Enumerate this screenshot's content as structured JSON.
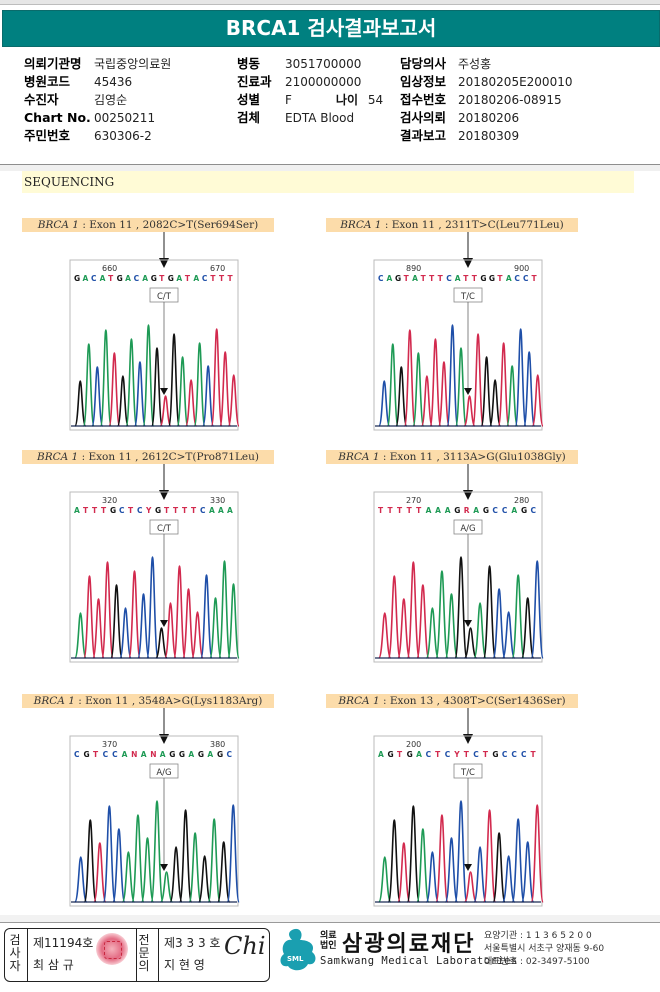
{
  "report": {
    "title": "BRCA1 검사결과보고서"
  },
  "patient_info": {
    "col1": [
      {
        "label": "의뢰기관명",
        "value": "국립중앙의료원"
      },
      {
        "label": "병원코드",
        "value": "45436"
      },
      {
        "label": "수진자",
        "value": "김영순"
      },
      {
        "label": "Chart No.",
        "value": "00250211"
      },
      {
        "label": "주민번호",
        "value": "630306-2"
      }
    ],
    "col2": [
      {
        "label": "병동",
        "value": "3051700000"
      },
      {
        "label": "진료과",
        "value": "2100000000"
      },
      {
        "label": "성별",
        "value": "F"
      },
      {
        "label": "검체",
        "value": "EDTA Blood"
      }
    ],
    "age": {
      "label": "나이",
      "value": "54"
    },
    "col3": [
      {
        "label": "담당의사",
        "value": "주성홍"
      },
      {
        "label": "임상정보",
        "value": "20180205E200010"
      },
      {
        "label": "접수번호",
        "value": "20180206-08915"
      },
      {
        "label": "검사의뢰",
        "value": "20180206"
      },
      {
        "label": "결과보고",
        "value": "20180309"
      }
    ]
  },
  "section": {
    "title": "SEQUENCING"
  },
  "colors": {
    "header_teal": "#008080",
    "base_A": "#1e9a55",
    "base_C": "#1f4fa8",
    "base_G": "#111111",
    "base_T": "#d22a4e",
    "caption_bg": "#fcdcaa",
    "section_bg": "#fffbd6"
  },
  "variants": [
    {
      "gene": "BRCA 1",
      "desc": " : Exon 11 , 2082C>T(Ser694Ser)",
      "call": "C/T",
      "pos_left": "660",
      "pos_right": "670",
      "sequence": "GACATGACAGTGATACTTT"
    },
    {
      "gene": "BRCA 1",
      "desc": " : Exon 11 , 2311T>C(Leu771Leu)",
      "call": "T/C",
      "pos_left": "890",
      "pos_right": "900",
      "sequence": "CAGTATTTCATTGGTACCT"
    },
    {
      "gene": "BRCA 1",
      "desc": " : Exon 11 , 2612C>T(Pro871Leu)",
      "call": "C/T",
      "pos_left": "320",
      "pos_right": "330",
      "sequence": "ATTTGCTCYGTTTTCAAA"
    },
    {
      "gene": "BRCA 1",
      "desc": " : Exon 11 , 3113A>G(Glu1038Gly)",
      "call": "A/G",
      "pos_left": "270",
      "pos_right": "280",
      "sequence": "TTTTTAAAGRAGCCAGC"
    },
    {
      "gene": "BRCA 1",
      "desc": " : Exon 11 , 3548A>G(Lys1183Arg)",
      "call": "A/G",
      "pos_left": "370",
      "pos_right": "380",
      "sequence": "CGTCCANANAGGAGAGC"
    },
    {
      "gene": "BRCA 1",
      "desc": " : Exon 13 , 4308T>C(Ser1436Ser)",
      "call": "T/C",
      "pos_left": "200",
      "pos_right": "",
      "sequence": "AGTGACTCYTCTGCCCT"
    }
  ],
  "footer": {
    "examiner_label": "검사자",
    "examiner_license": "제11194호",
    "examiner_name": "최 삼 규",
    "specialist_label": "전문의",
    "specialist_license": "제3 3 3 호",
    "specialist_name": "지 현 영",
    "signature": "Chi",
    "org_type_line1": "의료",
    "org_type_line2": "법인",
    "org_name": "삼광의료재단",
    "org_name_en": "Samkwang Medical Laboratories",
    "logo_text": "SML",
    "org_code": "요양기관 : 1 1 3 6 5 2 0 0",
    "address": "서울특별시 서초구 양재동 9-60",
    "phone": "대표번호 : 02-3497-5100"
  }
}
